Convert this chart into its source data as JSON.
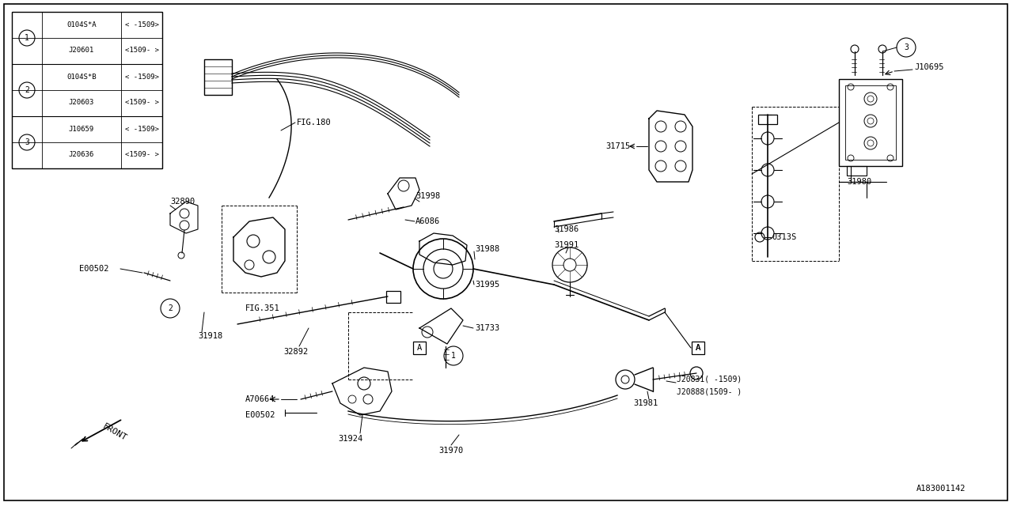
{
  "bg_color": "#ffffff",
  "line_color": "#000000",
  "fig_width": 12.8,
  "fig_height": 6.4,
  "dpi": 100,
  "parts_table": {
    "rows": [
      {
        "num": 1,
        "part1": "0104S*A",
        "range1": "< -1509>",
        "part2": "J20601",
        "range2": "<1509- >"
      },
      {
        "num": 2,
        "part1": "0104S*B",
        "range1": "< -1509>",
        "part2": "J20603",
        "range2": "<1509- >"
      },
      {
        "num": 3,
        "part1": "J10659",
        "range1": "< -1509>",
        "part2": "J20636",
        "range2": "<1509- >"
      }
    ]
  }
}
